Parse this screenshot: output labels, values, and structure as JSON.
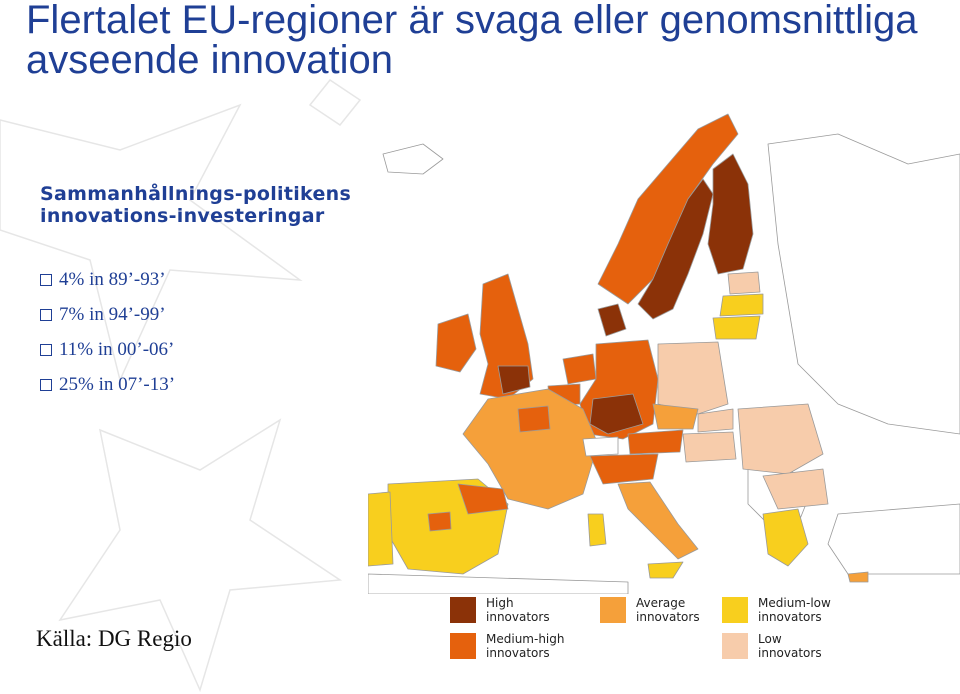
{
  "slide": {
    "title": "Flertalet EU-regioner är svaga eller genomsnittliga avseende innovation",
    "subtitle": "Sammanhållnings-politikens innovations-investeringar",
    "bullets": [
      "4% in 89’-93’",
      "7% in 94’-99’",
      "11% in 00’-06’",
      "25% in 07’-13’"
    ],
    "source": "Källa: DG Regio"
  },
  "legend": [
    {
      "label": "High innovators",
      "color": "#8b3208"
    },
    {
      "label": "Average innovators",
      "color": "#f5a03a"
    },
    {
      "label": "Medium-low innovators",
      "color": "#f8cf1e"
    },
    {
      "label": "Medium-high innovators",
      "color": "#e5610d"
    },
    {
      "label": "Low innovators",
      "color": "#f7ccab"
    }
  ],
  "map": {
    "non_eu_color": "#ffffff",
    "border_color": "#9a9a9a"
  }
}
